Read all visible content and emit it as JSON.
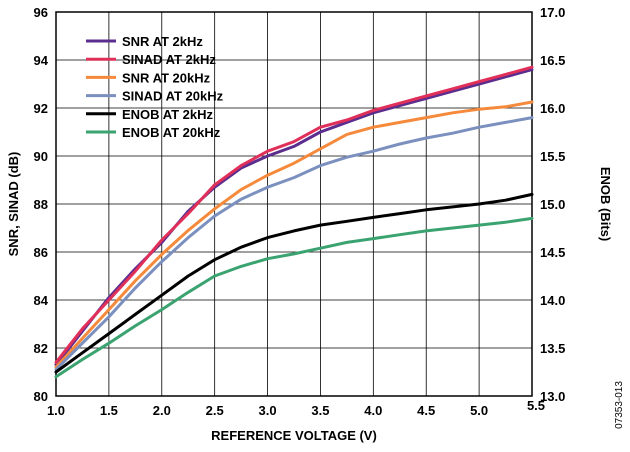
{
  "figure_id": "07353-013",
  "chart_data": {
    "type": "line",
    "xlabel": "REFERENCE VOLTAGE (V)",
    "ylabel": "SNR, SINAD (dB)",
    "y2label": "ENOB (Bits)",
    "xlim": [
      1.0,
      5.5
    ],
    "ylim": [
      80,
      96
    ],
    "y2lim": [
      13.0,
      17.0
    ],
    "x_ticks": [
      "1.0",
      "1.5",
      "2.0",
      "2.5",
      "3.0",
      "3.5",
      "4.0",
      "4.5",
      "5.0",
      "5.5"
    ],
    "y_ticks": [
      "80",
      "82",
      "84",
      "86",
      "88",
      "90",
      "92",
      "94",
      "96"
    ],
    "y2_ticks": [
      "13.0",
      "13.5",
      "14.0",
      "14.5",
      "15.0",
      "15.5",
      "16.0",
      "16.5",
      "17.0"
    ],
    "grid": true,
    "legend_position": "top-left",
    "x": [
      1.0,
      1.25,
      1.5,
      1.75,
      2.0,
      2.25,
      2.5,
      2.75,
      3.0,
      3.25,
      3.5,
      3.75,
      4.0,
      4.25,
      4.5,
      4.75,
      5.0,
      5.25,
      5.5
    ],
    "series": [
      {
        "name": "SNR AT 2kHz",
        "color": "#5b2d8e",
        "axis": "left",
        "values": [
          81.3,
          82.7,
          84.1,
          85.3,
          86.4,
          87.7,
          88.7,
          89.5,
          90.0,
          90.4,
          91.0,
          91.4,
          91.8,
          92.1,
          92.4,
          92.7,
          93.0,
          93.3,
          93.6
        ]
      },
      {
        "name": "SINAD AT 2kHz",
        "color": "#e0305a",
        "axis": "left",
        "values": [
          81.4,
          82.8,
          84.0,
          85.2,
          86.5,
          87.6,
          88.8,
          89.6,
          90.2,
          90.6,
          91.2,
          91.5,
          91.9,
          92.2,
          92.5,
          92.8,
          93.1,
          93.4,
          93.7
        ]
      },
      {
        "name": "SNR AT 20kHz",
        "color": "#f58a3c",
        "axis": "left",
        "values": [
          81.2,
          82.4,
          83.6,
          84.8,
          85.9,
          86.9,
          87.8,
          88.6,
          89.2,
          89.7,
          90.3,
          90.9,
          91.2,
          91.4,
          91.6,
          91.8,
          91.95,
          92.05,
          92.25
        ]
      },
      {
        "name": "SINAD AT 20kHz",
        "color": "#7b90bf",
        "axis": "left",
        "values": [
          81.1,
          82.2,
          83.3,
          84.5,
          85.6,
          86.6,
          87.5,
          88.2,
          88.7,
          89.1,
          89.6,
          89.95,
          90.2,
          90.5,
          90.75,
          90.95,
          91.2,
          91.4,
          91.6
        ]
      },
      {
        "name": "ENOB AT 2kHz",
        "color": "#000000",
        "axis": "right",
        "values": [
          13.25,
          13.45,
          13.65,
          13.85,
          14.05,
          14.25,
          14.42,
          14.55,
          14.65,
          14.72,
          14.78,
          14.82,
          14.86,
          14.9,
          14.94,
          14.97,
          15.0,
          15.04,
          15.1
        ]
      },
      {
        "name": "ENOB AT 20kHz",
        "color": "#3aa370",
        "axis": "right",
        "values": [
          13.2,
          13.38,
          13.55,
          13.73,
          13.9,
          14.08,
          14.25,
          14.35,
          14.43,
          14.48,
          14.54,
          14.6,
          14.64,
          14.68,
          14.72,
          14.75,
          14.78,
          14.81,
          14.85
        ]
      }
    ]
  }
}
